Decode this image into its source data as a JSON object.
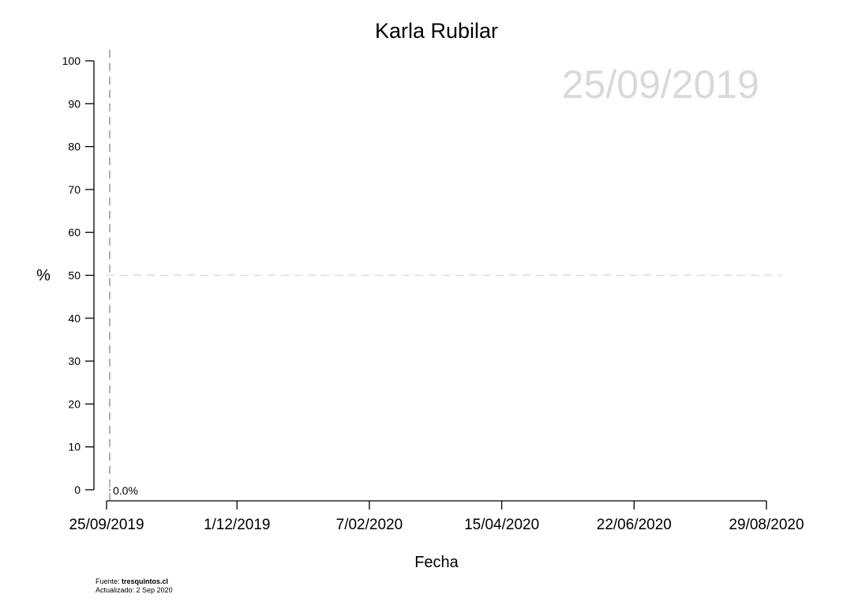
{
  "chart_data": {
    "type": "line",
    "title": "Karla Rubilar",
    "xlabel": "Fecha",
    "ylabel": "%",
    "watermark_date": "25/09/2019",
    "x_range": [
      "2019-09-25",
      "2020-08-29"
    ],
    "ylim": [
      0,
      100
    ],
    "y_ticks": [
      0,
      10,
      20,
      30,
      40,
      50,
      60,
      70,
      80,
      90,
      100
    ],
    "x_ticks": [
      {
        "date": "2019-09-25",
        "label": "25/09/2019"
      },
      {
        "date": "2019-12-01",
        "label": "1/12/2019"
      },
      {
        "date": "2020-02-07",
        "label": "7/02/2020"
      },
      {
        "date": "2020-04-15",
        "label": "15/04/2020"
      },
      {
        "date": "2020-06-22",
        "label": "22/06/2020"
      },
      {
        "date": "2020-08-29",
        "label": "29/08/2020"
      }
    ],
    "reference_lines": {
      "horizontal_y": 50,
      "vertical_x": "2019-09-25"
    },
    "series": [
      {
        "points": [
          {
            "x": "2019-09-25",
            "y": 0
          }
        ]
      }
    ],
    "annotations": [
      {
        "x": "2019-09-25",
        "y": 0,
        "text": "0.0%"
      }
    ],
    "grid": false,
    "colors": {
      "axis": "#000000",
      "reference_vertical": "#888888",
      "reference_horizontal": "#d9d9d9",
      "watermark": "#d9d9d9"
    }
  },
  "footer": {
    "source_prefix": "Fuente: ",
    "source_name": "tresquintos.cl",
    "updated": "Actualizado: 2 Sep 2020"
  }
}
